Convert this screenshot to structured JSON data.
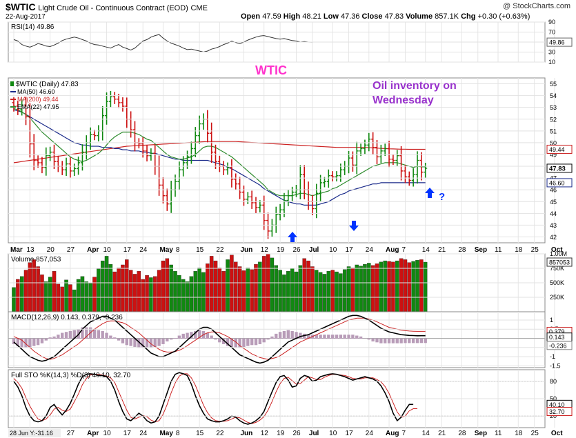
{
  "header": {
    "symbol": "$WTIC",
    "name": "Light Crude Oil - Continuous Contract (EOD)",
    "exchange": "CME",
    "date": "22-Aug-2017",
    "watermark": "@ StockCharts.com",
    "ohlc": {
      "open_label": "Open",
      "open": "47.59",
      "high_label": "High",
      "high": "48.21",
      "low_label": "Low",
      "low": "47.36",
      "close_label": "Close",
      "close": "47.83",
      "volume_label": "Volume",
      "volume": "857.1K",
      "chg_label": "Chg",
      "chg": "+0.30 (+0.63%)"
    }
  },
  "annotations": {
    "wtic_label": "WTIC",
    "note_line1": "Oil inventory on",
    "note_line2": "Wednesday",
    "question": "?",
    "colors": {
      "wtic": "#ff33cc",
      "note": "#9933cc",
      "arrows": "#0033ff"
    }
  },
  "footer": {
    "readout": "28 Jun Y:-31.16"
  },
  "colors": {
    "up": "#118811",
    "down": "#cc1111",
    "ma50": "#1a2a8a",
    "ma200": "#cc2222",
    "ema22": "#2e8b2e",
    "indicator": "#555555"
  },
  "chart_data": [
    {
      "panel": "rsi",
      "type": "line",
      "legend": "RSI(14) 49.86",
      "ylim": [
        10,
        90
      ],
      "yticks": [
        90,
        70,
        50,
        30,
        10
      ],
      "reference_lines": [
        70,
        30
      ],
      "last_value_label": "49.86",
      "values": [
        55,
        52,
        45,
        42,
        40,
        43,
        47,
        45,
        42,
        41,
        44,
        48,
        53,
        56,
        58,
        60,
        58,
        55,
        52,
        48,
        45,
        44,
        42,
        40,
        38,
        42,
        45,
        40,
        37,
        34,
        38,
        45,
        52,
        55,
        60,
        63,
        65,
        58,
        52,
        48,
        45,
        42,
        38,
        35,
        36,
        34,
        32,
        30,
        32,
        36,
        38,
        41,
        45,
        48,
        52,
        49,
        47,
        50,
        54,
        57,
        60,
        62,
        63,
        61,
        59,
        57,
        56,
        57,
        55,
        53,
        52,
        50,
        51,
        50,
        49.86
      ]
    },
    {
      "panel": "price",
      "type": "ohlc",
      "legend": {
        "series": "$WTIC (Daily) 47.83",
        "ma50": "MA(50) 46.60",
        "ma200": "MA(200) 49.44",
        "ema22": "EMA(22) 47.95"
      },
      "ylim": [
        41.5,
        55.5
      ],
      "yticks": [
        42,
        43,
        44,
        45,
        46,
        47,
        48,
        49,
        50,
        51,
        52,
        53,
        54,
        55
      ],
      "last_labels": {
        "ma200": "49.44",
        "close": "47.83",
        "ma50": "46.60"
      },
      "close": [
        53.1,
        52.8,
        53.2,
        52.2,
        49.9,
        48.5,
        48.3,
        47.9,
        48.9,
        49.2,
        48.4,
        48.0,
        47.7,
        48.2,
        47.6,
        47.8,
        48.3,
        49.2,
        50.0,
        50.7,
        50.6,
        51.0,
        52.3,
        53.5,
        53.9,
        53.7,
        53.4,
        53.1,
        52.0,
        51.1,
        50.0,
        49.9,
        49.3,
        48.9,
        49.1,
        48.0,
        46.4,
        45.5,
        44.8,
        46.0,
        46.7,
        47.7,
        48.3,
        48.8,
        49.5,
        50.6,
        51.6,
        52.0,
        50.8,
        49.2,
        48.4,
        48.0,
        47.7,
        47.9,
        46.9,
        46.5,
        45.8,
        45.2,
        45.4,
        44.9,
        44.5,
        44.7,
        43.4,
        42.5,
        43.0,
        43.9,
        44.3,
        45.1,
        45.5,
        45.8,
        46.0,
        47.3,
        46.0,
        45.0,
        44.4,
        45.7,
        46.6,
        46.7,
        47.2,
        47.1,
        47.2,
        47.7,
        48.0,
        48.7,
        48.1,
        49.3,
        49.5,
        49.8,
        50.3,
        49.6,
        48.8,
        49.3,
        49.5,
        48.6,
        48.5,
        48.9,
        47.6,
        47.1,
        46.8,
        47.3,
        48.5,
        47.5,
        47.83
      ],
      "ma50": [
        52.8,
        52.7,
        52.6,
        52.4,
        52.2,
        52.0,
        51.8,
        51.6,
        51.4,
        51.2,
        51.0,
        50.8,
        50.6,
        50.4,
        50.2,
        50.0,
        49.9,
        49.8,
        49.8,
        49.7,
        49.7,
        49.7,
        49.6,
        49.6,
        49.6,
        49.5,
        49.5,
        49.4,
        49.4,
        49.3,
        49.3,
        49.3,
        49.2,
        49.2,
        49.1,
        49.1,
        49.0,
        48.9,
        48.8,
        48.7,
        48.6,
        48.6,
        48.5,
        48.5,
        48.5,
        48.5,
        48.5,
        48.5,
        48.5,
        48.4,
        48.3,
        48.2,
        48.1,
        47.9,
        47.8,
        47.6,
        47.4,
        47.2,
        47.0,
        46.8,
        46.6,
        46.4,
        46.1,
        45.9,
        45.7,
        45.5,
        45.3,
        45.1,
        45.0,
        44.9,
        44.8,
        44.8,
        44.7,
        44.7,
        44.7,
        44.7,
        44.8,
        44.9,
        45.0,
        45.2,
        45.4,
        45.6,
        45.7,
        45.9,
        46.0,
        46.1,
        46.2,
        46.3,
        46.4,
        46.5,
        46.5,
        46.6,
        46.6,
        46.6,
        46.6,
        46.6,
        46.6,
        46.6,
        46.6,
        46.6,
        46.6,
        46.6,
        46.6
      ],
      "ma200": [
        48.3,
        48.35,
        48.4,
        48.45,
        48.5,
        48.55,
        48.6,
        48.65,
        48.7,
        48.75,
        48.8,
        48.85,
        48.9,
        48.95,
        49.0,
        49.05,
        49.1,
        49.15,
        49.2,
        49.25,
        49.3,
        49.35,
        49.4,
        49.45,
        49.5,
        49.55,
        49.6,
        49.65,
        49.7,
        49.72,
        49.74,
        49.76,
        49.78,
        49.8,
        49.82,
        49.84,
        49.86,
        49.88,
        49.9,
        49.92,
        49.94,
        49.96,
        49.98,
        50.0,
        50.02,
        50.04,
        50.06,
        50.08,
        50.1,
        50.1,
        50.1,
        50.1,
        50.1,
        50.1,
        50.1,
        50.1,
        50.08,
        50.06,
        50.04,
        50.02,
        50.0,
        49.98,
        49.96,
        49.94,
        49.92,
        49.9,
        49.88,
        49.86,
        49.84,
        49.82,
        49.8,
        49.78,
        49.76,
        49.74,
        49.72,
        49.7,
        49.68,
        49.66,
        49.64,
        49.62,
        49.6,
        49.6,
        49.6,
        49.6,
        49.6,
        49.6,
        49.6,
        49.6,
        49.58,
        49.56,
        49.54,
        49.52,
        49.5,
        49.48,
        49.47,
        49.46,
        49.45,
        49.45,
        49.44,
        49.44,
        49.44,
        49.44,
        49.44
      ],
      "ema22": [
        52.9,
        52.8,
        52.6,
        52.4,
        52.1,
        51.7,
        51.3,
        50.9,
        50.6,
        50.3,
        50.0,
        49.7,
        49.4,
        49.1,
        48.8,
        48.6,
        48.5,
        48.4,
        48.5,
        48.7,
        48.9,
        49.1,
        49.4,
        49.8,
        50.2,
        50.5,
        50.7,
        50.9,
        50.9,
        50.9,
        50.8,
        50.7,
        50.5,
        50.3,
        50.2,
        49.9,
        49.6,
        49.3,
        49.0,
        48.8,
        48.7,
        48.6,
        48.6,
        48.7,
        48.8,
        49.0,
        49.3,
        49.6,
        49.7,
        49.7,
        49.6,
        49.4,
        49.2,
        49.0,
        48.8,
        48.5,
        48.2,
        47.9,
        47.6,
        47.3,
        47.0,
        46.7,
        46.4,
        46.0,
        45.8,
        45.6,
        45.5,
        45.5,
        45.5,
        45.5,
        45.6,
        45.7,
        45.7,
        45.6,
        45.5,
        45.6,
        45.7,
        45.8,
        45.9,
        46.1,
        46.2,
        46.4,
        46.6,
        46.8,
        47.0,
        47.2,
        47.4,
        47.6,
        47.8,
        48.0,
        48.1,
        48.2,
        48.3,
        48.3,
        48.3,
        48.3,
        48.2,
        48.1,
        48.0,
        47.9,
        48.0,
        47.95,
        47.95
      ],
      "xlabels": [
        {
          "label": "Mar",
          "i": 0
        },
        {
          "label": "13",
          "i": 4
        },
        {
          "label": "20",
          "i": 9
        },
        {
          "label": "27",
          "i": 14
        },
        {
          "label": "Apr",
          "i": 19
        },
        {
          "label": "10",
          "i": 23
        },
        {
          "label": "17",
          "i": 28
        },
        {
          "label": "24",
          "i": 32
        },
        {
          "label": "May",
          "i": 37
        },
        {
          "label": "8",
          "i": 41
        },
        {
          "label": "15",
          "i": 46
        },
        {
          "label": "22",
          "i": 51
        },
        {
          "label": "Jun",
          "i": 57
        },
        {
          "label": "12",
          "i": 62
        },
        {
          "label": "19",
          "i": 66
        },
        {
          "label": "26",
          "i": 70
        },
        {
          "label": "Jul",
          "i": 74
        },
        {
          "label": "10",
          "i": 79
        },
        {
          "label": "17",
          "i": 83
        },
        {
          "label": "24",
          "i": 88
        },
        {
          "label": "Aug",
          "i": 93
        },
        {
          "label": "7",
          "i": 97
        },
        {
          "label": "14",
          "i": 102
        },
        {
          "label": "21",
          "i": 106
        },
        {
          "label": "28",
          "i": 111
        },
        {
          "label": "Sep",
          "i": 115
        },
        {
          "label": "11",
          "i": 120
        },
        {
          "label": "18",
          "i": 125
        },
        {
          "label": "25",
          "i": 129
        },
        {
          "label": "Oct",
          "i": 134
        }
      ]
    },
    {
      "panel": "volume",
      "type": "bar",
      "legend": "Volume 857,053",
      "ylim": [
        0,
        1000000
      ],
      "ytick_labels": [
        {
          "v": 1000000,
          "t": "1.00M"
        },
        {
          "v": 750000,
          "t": "750K"
        },
        {
          "v": 500000,
          "t": "500K"
        },
        {
          "v": 250000,
          "t": "250K"
        }
      ],
      "last_value_label": "857053",
      "values": [
        420000,
        560000,
        610000,
        720000,
        850000,
        900000,
        780000,
        640000,
        520000,
        600000,
        700000,
        480000,
        430000,
        550000,
        470000,
        380000,
        560000,
        610000,
        520000,
        490000,
        600000,
        740000,
        880000,
        960000,
        820000,
        690000,
        760000,
        810000,
        900000,
        720000,
        650000,
        700000,
        560000,
        630000,
        590000,
        610000,
        720000,
        880000,
        920000,
        810000,
        700000,
        630000,
        560000,
        520000,
        610000,
        700000,
        760000,
        680000,
        830000,
        960000,
        880000,
        760000,
        700000,
        900000,
        980000,
        860000,
        780000,
        710000,
        760000,
        730000,
        820000,
        860000,
        960000,
        1000000,
        930000,
        800000,
        720000,
        640000,
        700000,
        750000,
        690000,
        800000,
        920000,
        880000,
        780000,
        720000,
        680000,
        650000,
        700000,
        720000,
        690000,
        660000,
        730000,
        780000,
        760000,
        810000,
        790000,
        820000,
        840000,
        800000,
        830000,
        860000,
        880000,
        870000,
        860000,
        880000,
        920000,
        900000,
        850000,
        870000,
        890000,
        900000,
        857053
      ]
    },
    {
      "panel": "macd",
      "type": "line",
      "legend": "MACD(12,26,9) 0.143, 0.379, -0.236",
      "ylim": [
        -1.6,
        1.45
      ],
      "yticks": [
        1.0,
        0.5,
        -0.5,
        -1.0,
        -1.5
      ],
      "last_value_labels": [
        "0.379",
        "0.143",
        "-0.236"
      ],
      "macd": [
        -0.2,
        -0.4,
        -0.6,
        -0.8,
        -1.0,
        -1.1,
        -1.2,
        -1.25,
        -1.2,
        -1.1,
        -1.0,
        -0.8,
        -0.6,
        -0.4,
        -0.2,
        0.0,
        0.2,
        0.5,
        0.7,
        0.9,
        1.0,
        1.1,
        1.2,
        1.2,
        1.1,
        1.0,
        0.8,
        0.6,
        0.4,
        0.2,
        0.0,
        -0.2,
        -0.4,
        -0.6,
        -0.8,
        -0.9,
        -1.0,
        -1.0,
        -0.9,
        -0.8,
        -0.7,
        -0.5,
        -0.3,
        -0.1,
        0.1,
        0.3,
        0.5,
        0.6,
        0.6,
        0.5,
        0.3,
        0.1,
        -0.1,
        -0.3,
        -0.5,
        -0.7,
        -0.9,
        -1.0,
        -1.1,
        -1.2,
        -1.3,
        -1.35,
        -1.3,
        -1.2,
        -1.0,
        -0.8,
        -0.6,
        -0.4,
        -0.2,
        -0.1,
        0.0,
        0.1,
        0.15,
        0.2,
        0.3,
        0.4,
        0.5,
        0.6,
        0.7,
        0.8,
        0.9,
        1.0,
        1.1,
        1.2,
        1.25,
        1.25,
        1.2,
        1.1,
        1.0,
        0.85,
        0.7,
        0.55,
        0.45,
        0.35,
        0.3,
        0.25,
        0.2,
        0.18,
        0.16,
        0.15,
        0.14,
        0.143,
        0.143
      ],
      "signal": [
        0.1,
        0.0,
        -0.1,
        -0.3,
        -0.5,
        -0.7,
        -0.85,
        -1.0,
        -1.1,
        -1.15,
        -1.1,
        -1.0,
        -0.9,
        -0.75,
        -0.6,
        -0.45,
        -0.3,
        -0.1,
        0.1,
        0.3,
        0.5,
        0.65,
        0.8,
        0.9,
        0.95,
        0.95,
        0.9,
        0.85,
        0.75,
        0.6,
        0.45,
        0.3,
        0.1,
        -0.1,
        -0.3,
        -0.45,
        -0.6,
        -0.7,
        -0.75,
        -0.75,
        -0.72,
        -0.65,
        -0.55,
        -0.4,
        -0.25,
        -0.1,
        0.05,
        0.2,
        0.3,
        0.35,
        0.35,
        0.3,
        0.2,
        0.1,
        -0.05,
        -0.2,
        -0.4,
        -0.55,
        -0.7,
        -0.85,
        -0.95,
        -1.05,
        -1.1,
        -1.15,
        -1.1,
        -1.05,
        -0.95,
        -0.8,
        -0.65,
        -0.5,
        -0.35,
        -0.2,
        -0.1,
        0.0,
        0.1,
        0.2,
        0.3,
        0.4,
        0.5,
        0.6,
        0.7,
        0.8,
        0.9,
        1.0,
        1.05,
        1.1,
        1.1,
        1.1,
        1.05,
        1.0,
        0.9,
        0.8,
        0.7,
        0.6,
        0.55,
        0.5,
        0.45,
        0.42,
        0.4,
        0.39,
        0.38,
        0.379,
        0.379
      ]
    },
    {
      "panel": "sto",
      "type": "line",
      "legend": "Full STO %K(14,3) %D(3) 40.10, 32.70",
      "ylim": [
        0,
        100
      ],
      "yticks": [
        80,
        50,
        20
      ],
      "reference_lines": [
        80,
        20
      ],
      "last_value_labels": [
        "40.10",
        "32.70"
      ],
      "k": [
        80,
        70,
        55,
        35,
        20,
        12,
        10,
        12,
        20,
        35,
        40,
        30,
        22,
        30,
        42,
        58,
        75,
        88,
        92,
        93,
        92,
        90,
        90,
        88,
        80,
        65,
        45,
        28,
        15,
        12,
        18,
        25,
        20,
        12,
        8,
        10,
        20,
        40,
        60,
        80,
        92,
        95,
        93,
        90,
        75,
        55,
        38,
        25,
        15,
        12,
        10,
        10,
        12,
        15,
        20,
        18,
        12,
        8,
        6,
        8,
        12,
        18,
        28,
        45,
        62,
        78,
        88,
        90,
        82,
        70,
        72,
        85,
        90,
        88,
        80,
        82,
        88,
        90,
        92,
        93,
        92,
        90,
        88,
        85,
        82,
        84,
        86,
        88,
        86,
        84,
        80,
        72,
        60,
        45,
        25,
        12,
        18,
        30,
        40.1,
        40.1
      ],
      "d": [
        85,
        78,
        68,
        52,
        37,
        25,
        15,
        12,
        15,
        22,
        32,
        35,
        30,
        28,
        32,
        45,
        58,
        74,
        85,
        91,
        92,
        92,
        91,
        89,
        86,
        78,
        62,
        46,
        30,
        18,
        15,
        18,
        21,
        19,
        13,
        10,
        12,
        23,
        40,
        60,
        77,
        89,
        93,
        93,
        86,
        73,
        56,
        39,
        26,
        17,
        12,
        11,
        11,
        12,
        15,
        18,
        17,
        13,
        9,
        7,
        9,
        13,
        19,
        30,
        45,
        62,
        76,
        85,
        87,
        81,
        75,
        76,
        82,
        88,
        86,
        83,
        83,
        87,
        90,
        92,
        92,
        91,
        90,
        88,
        85,
        84,
        84,
        86,
        86,
        86,
        83,
        79,
        71,
        59,
        43,
        27,
        18,
        20,
        29,
        32.7,
        32.7
      ]
    }
  ]
}
